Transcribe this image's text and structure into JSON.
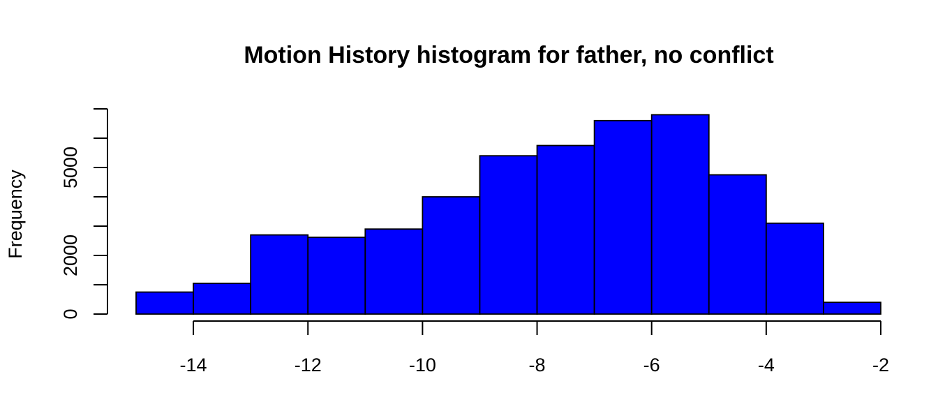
{
  "chart_data": {
    "type": "bar",
    "title": "Motion History histogram for father, no conflict",
    "xlabel": "",
    "ylabel": "Frequency",
    "bin_edges": [
      -15,
      -14,
      -13,
      -12,
      -11,
      -10,
      -9,
      -8,
      -7,
      -6,
      -5,
      -4,
      -3,
      -2
    ],
    "values": [
      750,
      1050,
      2700,
      2620,
      2900,
      4000,
      5400,
      5750,
      6600,
      6800,
      4750,
      3100,
      400
    ],
    "xlim": [
      -15,
      -2
    ],
    "ylim": [
      0,
      7000
    ],
    "x_ticks": [
      -14,
      -12,
      -10,
      -8,
      -6,
      -4,
      -2
    ],
    "x_tick_labels": [
      "-14",
      "-12",
      "-10",
      "-8",
      "-6",
      "-4",
      "-2"
    ],
    "y_ticks": [
      0,
      1000,
      2000,
      3000,
      4000,
      5000,
      6000,
      7000
    ],
    "y_tick_labels": [
      "0",
      "",
      "2000",
      "",
      "",
      "5000",
      "",
      ""
    ],
    "bar_color": "#0000ff",
    "bar_border_color": "#000000",
    "grid": false,
    "legend": "none"
  }
}
